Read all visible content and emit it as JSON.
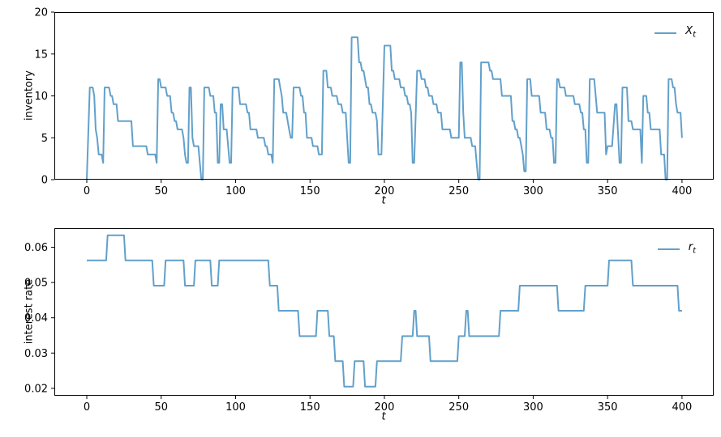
{
  "figure": {
    "background": "#ffffff",
    "line_color": "#62a0ca",
    "axis_color": "#000000",
    "text_color": "#000000"
  },
  "chart_data": [
    {
      "type": "line",
      "id": "inventory",
      "series_name": "X_t",
      "xlabel": "t",
      "ylabel": "inventory",
      "legend": {
        "base": "X",
        "sub": "t",
        "position": "upper right"
      },
      "grid": false,
      "xlim": [
        -21.8,
        421.3
      ],
      "ylim": [
        0,
        20
      ],
      "xticks": {
        "values": [
          0,
          50,
          100,
          150,
          200,
          250,
          300,
          350,
          400
        ],
        "labels": [
          "0",
          "50",
          "100",
          "150",
          "200",
          "250",
          "300",
          "350",
          "400"
        ]
      },
      "yticks": {
        "values": [
          0,
          5,
          10,
          15,
          20
        ],
        "labels": [
          "0",
          "5",
          "10",
          "15",
          "20"
        ]
      },
      "steps_format": "[t_start, t_end, inventory_level]",
      "steps": [
        [
          0,
          0,
          0
        ],
        [
          2,
          4,
          11
        ],
        [
          5,
          5,
          10
        ],
        [
          6,
          6,
          6
        ],
        [
          7,
          7,
          5
        ],
        [
          8,
          10,
          3
        ],
        [
          11,
          11,
          2
        ],
        [
          12,
          15,
          11
        ],
        [
          16,
          17,
          10
        ],
        [
          18,
          20,
          9
        ],
        [
          21,
          30,
          7
        ],
        [
          31,
          40,
          4
        ],
        [
          41,
          46,
          3
        ],
        [
          47,
          47,
          2
        ],
        [
          48,
          49,
          12
        ],
        [
          50,
          53,
          11
        ],
        [
          54,
          56,
          10
        ],
        [
          57,
          58,
          8
        ],
        [
          59,
          60,
          7
        ],
        [
          61,
          64,
          6
        ],
        [
          65,
          65,
          5
        ],
        [
          66,
          66,
          3
        ],
        [
          67,
          68,
          2
        ],
        [
          69,
          70,
          11
        ],
        [
          71,
          71,
          5
        ],
        [
          72,
          75,
          4
        ],
        [
          76,
          76,
          2
        ],
        [
          77,
          78,
          0
        ],
        [
          79,
          82,
          11
        ],
        [
          83,
          85,
          10
        ],
        [
          86,
          87,
          8
        ],
        [
          88,
          89,
          2
        ],
        [
          90,
          91,
          9
        ],
        [
          92,
          94,
          6
        ],
        [
          95,
          95,
          4
        ],
        [
          96,
          97,
          2
        ],
        [
          98,
          102,
          11
        ],
        [
          103,
          107,
          9
        ],
        [
          108,
          109,
          8
        ],
        [
          110,
          114,
          6
        ],
        [
          115,
          119,
          5
        ],
        [
          120,
          121,
          4
        ],
        [
          122,
          124,
          3
        ],
        [
          125,
          125,
          2
        ],
        [
          126,
          129,
          12
        ],
        [
          130,
          130,
          11
        ],
        [
          131,
          131,
          10
        ],
        [
          132,
          134,
          8
        ],
        [
          135,
          135,
          7
        ],
        [
          136,
          136,
          6
        ],
        [
          137,
          138,
          5
        ],
        [
          139,
          143,
          11
        ],
        [
          144,
          145,
          10
        ],
        [
          146,
          147,
          8
        ],
        [
          148,
          151,
          5
        ],
        [
          152,
          155,
          4
        ],
        [
          156,
          158,
          3
        ],
        [
          159,
          161,
          13
        ],
        [
          162,
          164,
          11
        ],
        [
          165,
          168,
          10
        ],
        [
          169,
          171,
          9
        ],
        [
          172,
          174,
          8
        ],
        [
          175,
          175,
          5
        ],
        [
          176,
          177,
          2
        ],
        [
          178,
          182,
          17
        ],
        [
          183,
          184,
          14
        ],
        [
          185,
          186,
          13
        ],
        [
          187,
          187,
          12
        ],
        [
          188,
          189,
          11
        ],
        [
          190,
          191,
          9
        ],
        [
          192,
          194,
          8
        ],
        [
          195,
          195,
          7
        ],
        [
          196,
          198,
          3
        ],
        [
          200,
          204,
          16
        ],
        [
          205,
          206,
          13
        ],
        [
          207,
          210,
          12
        ],
        [
          211,
          213,
          11
        ],
        [
          214,
          215,
          10
        ],
        [
          216,
          217,
          9
        ],
        [
          218,
          218,
          8
        ],
        [
          219,
          220,
          2
        ],
        [
          222,
          224,
          13
        ],
        [
          225,
          227,
          12
        ],
        [
          228,
          229,
          11
        ],
        [
          230,
          232,
          10
        ],
        [
          233,
          235,
          9
        ],
        [
          236,
          238,
          8
        ],
        [
          239,
          244,
          6
        ],
        [
          245,
          250,
          5
        ],
        [
          251,
          252,
          14
        ],
        [
          253,
          253,
          8
        ],
        [
          254,
          258,
          5
        ],
        [
          259,
          261,
          4
        ],
        [
          262,
          262,
          2
        ],
        [
          263,
          264,
          0
        ],
        [
          265,
          270,
          14
        ],
        [
          271,
          272,
          13
        ],
        [
          273,
          278,
          12
        ],
        [
          279,
          285,
          10
        ],
        [
          286,
          287,
          7
        ],
        [
          288,
          289,
          6
        ],
        [
          290,
          291,
          5
        ],
        [
          292,
          292,
          4
        ],
        [
          293,
          293,
          3
        ],
        [
          294,
          295,
          1
        ],
        [
          296,
          298,
          12
        ],
        [
          299,
          304,
          10
        ],
        [
          305,
          308,
          8
        ],
        [
          309,
          311,
          6
        ],
        [
          312,
          313,
          5
        ],
        [
          314,
          315,
          2
        ],
        [
          316,
          317,
          12
        ],
        [
          318,
          321,
          11
        ],
        [
          322,
          327,
          10
        ],
        [
          328,
          331,
          9
        ],
        [
          332,
          333,
          8
        ],
        [
          334,
          335,
          6
        ],
        [
          336,
          337,
          2
        ],
        [
          338,
          341,
          12
        ],
        [
          342,
          342,
          10
        ],
        [
          343,
          348,
          8
        ],
        [
          349,
          349,
          3
        ],
        [
          350,
          353,
          4
        ],
        [
          355,
          356,
          9
        ],
        [
          358,
          359,
          2
        ],
        [
          360,
          363,
          11
        ],
        [
          364,
          366,
          7
        ],
        [
          367,
          372,
          6
        ],
        [
          373,
          373,
          2
        ],
        [
          374,
          376,
          10
        ],
        [
          377,
          378,
          8
        ],
        [
          379,
          385,
          6
        ],
        [
          386,
          388,
          3
        ],
        [
          389,
          390,
          0
        ],
        [
          391,
          393,
          12
        ],
        [
          394,
          395,
          11
        ],
        [
          396,
          396,
          9
        ],
        [
          397,
          399,
          8
        ],
        [
          400,
          400,
          5
        ]
      ]
    },
    {
      "type": "line",
      "id": "interest-rate",
      "series_name": "r_t",
      "xlabel": "t",
      "ylabel": "interest rate",
      "legend": {
        "base": "r",
        "sub": "t",
        "position": "upper right"
      },
      "grid": false,
      "xlim": [
        -21.8,
        421.3
      ],
      "ylim": [
        0.0179,
        0.0654
      ],
      "xticks": {
        "values": [
          0,
          50,
          100,
          150,
          200,
          250,
          300,
          350,
          400
        ],
        "labels": [
          "0",
          "50",
          "100",
          "150",
          "200",
          "250",
          "300",
          "350",
          "400"
        ]
      },
      "yticks": {
        "values": [
          0.02,
          0.03,
          0.04,
          0.05,
          0.06
        ],
        "labels": [
          "0.02",
          "0.03",
          "0.04",
          "0.05",
          "0.06"
        ]
      },
      "rate_levels": [
        0.0205,
        0.0277,
        0.0348,
        0.042,
        0.0491,
        0.0563,
        0.0634
      ],
      "steps_format": "[t_start, t_end, interest_rate]",
      "steps": [
        [
          0,
          13,
          0.0563
        ],
        [
          14,
          25,
          0.0634
        ],
        [
          26,
          44,
          0.0563
        ],
        [
          45,
          52,
          0.0491
        ],
        [
          53,
          65,
          0.0563
        ],
        [
          66,
          72,
          0.0491
        ],
        [
          73,
          83,
          0.0563
        ],
        [
          84,
          88,
          0.0491
        ],
        [
          89,
          122,
          0.0563
        ],
        [
          123,
          128,
          0.0491
        ],
        [
          129,
          142,
          0.042
        ],
        [
          143,
          154,
          0.0348
        ],
        [
          155,
          162,
          0.042
        ],
        [
          163,
          166,
          0.0348
        ],
        [
          167,
          172,
          0.0277
        ],
        [
          173,
          179,
          0.0205
        ],
        [
          180,
          186,
          0.0277
        ],
        [
          187,
          194,
          0.0205
        ],
        [
          195,
          211,
          0.0277
        ],
        [
          212,
          219,
          0.0348
        ],
        [
          220,
          221,
          0.042
        ],
        [
          222,
          230,
          0.0348
        ],
        [
          231,
          249,
          0.0277
        ],
        [
          250,
          254,
          0.0348
        ],
        [
          255,
          256,
          0.042
        ],
        [
          257,
          277,
          0.0348
        ],
        [
          278,
          290,
          0.042
        ],
        [
          291,
          316,
          0.0491
        ],
        [
          317,
          334,
          0.042
        ],
        [
          335,
          350,
          0.0491
        ],
        [
          351,
          366,
          0.0563
        ],
        [
          367,
          397,
          0.0491
        ],
        [
          398,
          400,
          0.042
        ]
      ]
    }
  ]
}
